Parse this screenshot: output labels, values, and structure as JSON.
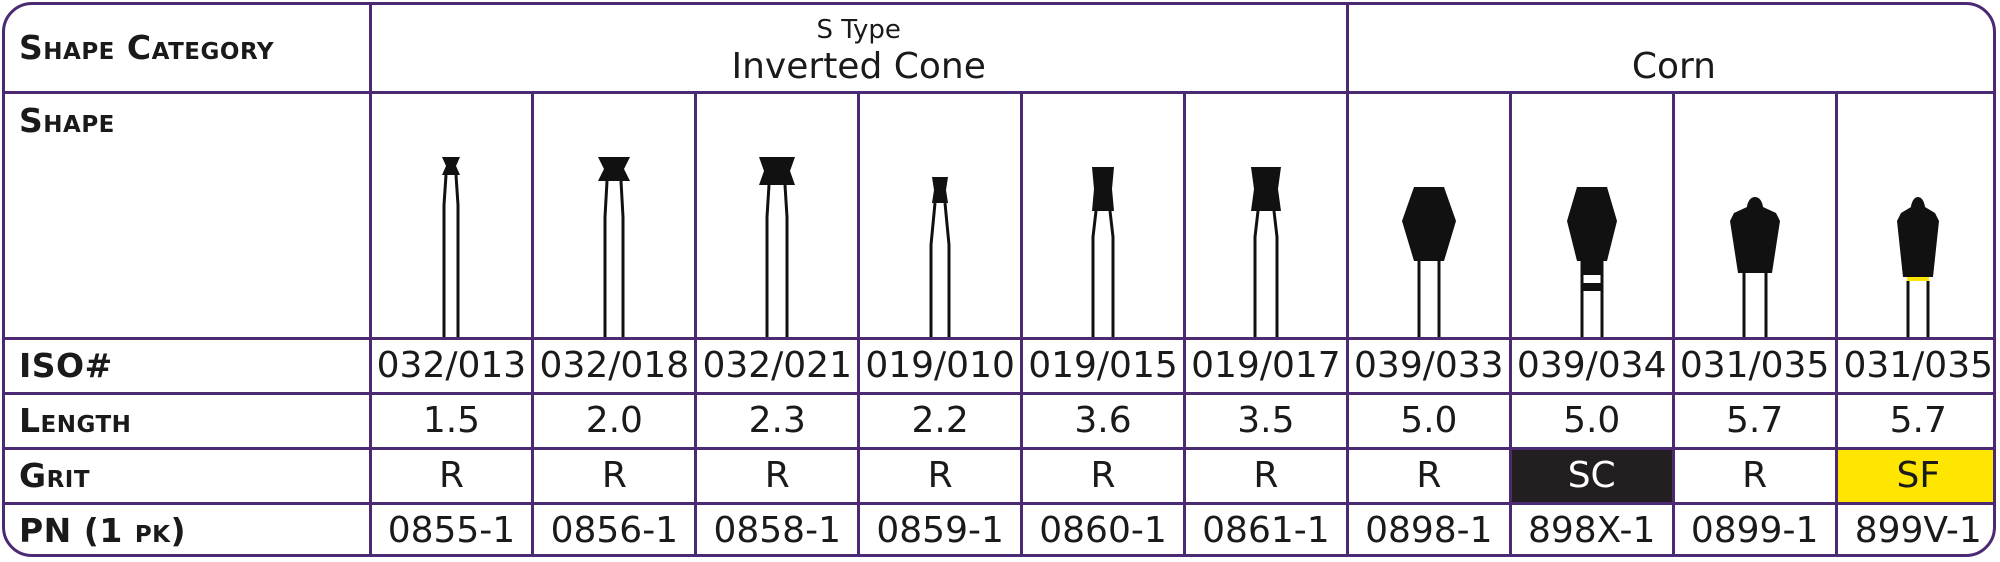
{
  "header": {
    "category_label": "Shape Category",
    "groups": [
      {
        "subtitle": "S Type",
        "name": "Inverted Cone"
      },
      {
        "subtitle": "",
        "name": "Corn"
      }
    ]
  },
  "rows": {
    "shape_label": "Shape",
    "iso_label": "ISO#",
    "length_label": "Length",
    "grit_label": "Grit",
    "pn_label": "PN (1 pk)"
  },
  "products": [
    {
      "shape_icon": "inverted-cone-bur-icon",
      "iso": "032/013",
      "length": "1.5",
      "grit": "R",
      "pn": "0855-1"
    },
    {
      "shape_icon": "inverted-cone-bur-icon",
      "iso": "032/018",
      "length": "2.0",
      "grit": "R",
      "pn": "0856-1"
    },
    {
      "shape_icon": "inverted-cone-bur-icon",
      "iso": "032/021",
      "length": "2.3",
      "grit": "R",
      "pn": "0858-1"
    },
    {
      "shape_icon": "inverted-cone-bur-icon",
      "iso": "019/010",
      "length": "2.2",
      "grit": "R",
      "pn": "0859-1"
    },
    {
      "shape_icon": "inverted-cone-bur-icon",
      "iso": "019/015",
      "length": "3.6",
      "grit": "R",
      "pn": "0860-1"
    },
    {
      "shape_icon": "inverted-cone-bur-icon",
      "iso": "019/017",
      "length": "3.5",
      "grit": "R",
      "pn": "0861-1"
    },
    {
      "shape_icon": "corn-bur-icon",
      "iso": "039/033",
      "length": "5.0",
      "grit": "R",
      "pn": "0898-1"
    },
    {
      "shape_icon": "corn-bur-icon",
      "iso": "039/034",
      "length": "5.0",
      "grit": "SC",
      "pn": "898X-1"
    },
    {
      "shape_icon": "corn-bur-icon",
      "iso": "031/035",
      "length": "5.7",
      "grit": "R",
      "pn": "0899-1"
    },
    {
      "shape_icon": "corn-bur-icon",
      "iso": "031/035",
      "length": "5.7",
      "grit": "SF",
      "pn": "899V-1"
    }
  ],
  "colors": {
    "border": "#4b2a73",
    "grit_sc_bg": "#231f20",
    "grit_sf_bg": "#ffe600"
  }
}
